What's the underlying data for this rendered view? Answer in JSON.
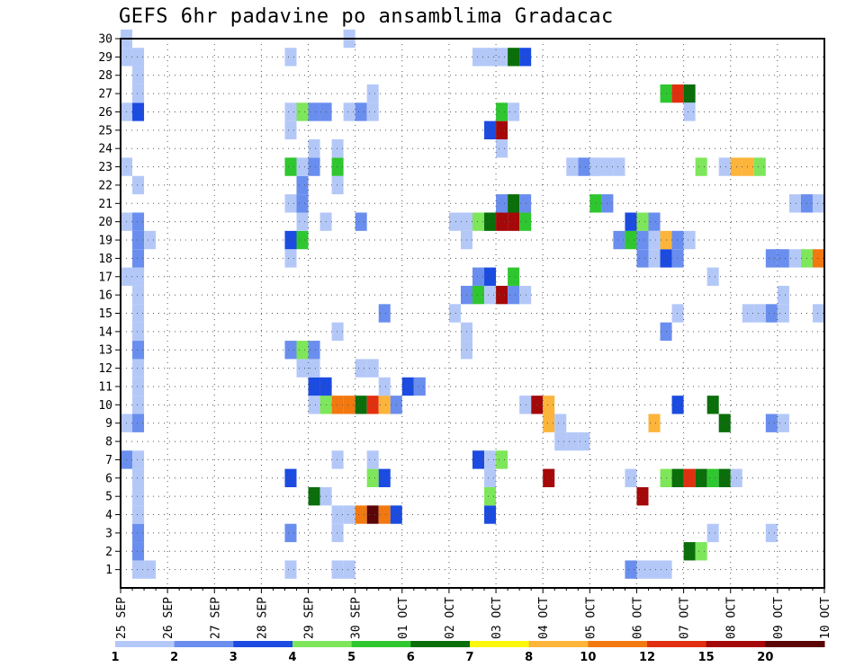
{
  "title": "GEFS 6hr padavine po ansamblima Gradacac",
  "chart_data": {
    "type": "heatmap",
    "title": "GEFS 6hr padavine po ansamblima Gradacac",
    "x_label": "",
    "y_label": "",
    "x_ticks": [
      "25 SEP",
      "26 SEP",
      "27 SEP",
      "28 SEP",
      "29 SEP",
      "30 SEP",
      "01 OCT",
      "02 OCT",
      "03 OCT",
      "04 OCT",
      "05 OCT",
      "06 OCT",
      "07 OCT",
      "08 OCT",
      "09 OCT",
      "10 OCT"
    ],
    "x_range_days": [
      0,
      15
    ],
    "y_ticks": [
      1,
      2,
      3,
      4,
      5,
      6,
      7,
      8,
      9,
      10,
      11,
      12,
      13,
      14,
      15,
      16,
      17,
      18,
      19,
      20,
      21,
      22,
      23,
      24,
      25,
      26,
      27,
      28,
      29,
      30
    ],
    "y_range": [
      0,
      30
    ],
    "grid": true,
    "colorbar": {
      "labels": [
        "1",
        "2",
        "3",
        "4",
        "5",
        "6",
        "7",
        "8",
        "10",
        "12",
        "15",
        "20"
      ],
      "colors": [
        "#b4c8f8",
        "#6a8eee",
        "#1b4be0",
        "#7ee65a",
        "#2fc72f",
        "#0a6e0a",
        "#fcf60a",
        "#fcb43a",
        "#f27810",
        "#e03010",
        "#a40808",
        "#5a0606"
      ]
    },
    "cells": [
      [
        1,
        1,
        1
      ],
      [
        2,
        1,
        1
      ],
      [
        1,
        2,
        2
      ],
      [
        1,
        3,
        2
      ],
      [
        1,
        4,
        1
      ],
      [
        1,
        5,
        1
      ],
      [
        1,
        6,
        1
      ],
      [
        0,
        7,
        2
      ],
      [
        1,
        7,
        1
      ],
      [
        0,
        9,
        1
      ],
      [
        1,
        9,
        2
      ],
      [
        1,
        10,
        1
      ],
      [
        1,
        11,
        1
      ],
      [
        1,
        12,
        1
      ],
      [
        1,
        13,
        2
      ],
      [
        1,
        14,
        1
      ],
      [
        1,
        15,
        1
      ],
      [
        1,
        16,
        1
      ],
      [
        0,
        17,
        1
      ],
      [
        1,
        17,
        1
      ],
      [
        1,
        18,
        2
      ],
      [
        1,
        19,
        2
      ],
      [
        2,
        19,
        1
      ],
      [
        0,
        20,
        1
      ],
      [
        1,
        20,
        2
      ],
      [
        1,
        22,
        1
      ],
      [
        0,
        23,
        1
      ],
      [
        0,
        26,
        1
      ],
      [
        1,
        26,
        3
      ],
      [
        1,
        27,
        1
      ],
      [
        1,
        28,
        1
      ],
      [
        0,
        29,
        1
      ],
      [
        1,
        29,
        1
      ],
      [
        0,
        30,
        1
      ],
      [
        14,
        1,
        1
      ],
      [
        18,
        1,
        1
      ],
      [
        19,
        1,
        1
      ],
      [
        14,
        3,
        2
      ],
      [
        18,
        3,
        1
      ],
      [
        18,
        4,
        1
      ],
      [
        19,
        4,
        1
      ],
      [
        20,
        4,
        9
      ],
      [
        21,
        4,
        12
      ],
      [
        22,
        4,
        9
      ],
      [
        23,
        4,
        3
      ],
      [
        16,
        5,
        6
      ],
      [
        17,
        5,
        1
      ],
      [
        14,
        6,
        3
      ],
      [
        21,
        6,
        4
      ],
      [
        22,
        6,
        3
      ],
      [
        18,
        7,
        1
      ],
      [
        21,
        7,
        1
      ],
      [
        16,
        10,
        1
      ],
      [
        17,
        10,
        4
      ],
      [
        18,
        10,
        9
      ],
      [
        19,
        10,
        9
      ],
      [
        20,
        10,
        6
      ],
      [
        21,
        10,
        10
      ],
      [
        22,
        10,
        8
      ],
      [
        23,
        10,
        2
      ],
      [
        16,
        11,
        3
      ],
      [
        17,
        11,
        3
      ],
      [
        22,
        11,
        1
      ],
      [
        24,
        11,
        3
      ],
      [
        25,
        11,
        2
      ],
      [
        15,
        12,
        1
      ],
      [
        16,
        12,
        1
      ],
      [
        20,
        12,
        1
      ],
      [
        21,
        12,
        1
      ],
      [
        14,
        13,
        2
      ],
      [
        15,
        13,
        4
      ],
      [
        16,
        13,
        2
      ],
      [
        18,
        14,
        1
      ],
      [
        22,
        15,
        2
      ],
      [
        14,
        18,
        1
      ],
      [
        14,
        19,
        3
      ],
      [
        15,
        19,
        5
      ],
      [
        15,
        20,
        1
      ],
      [
        17,
        20,
        1
      ],
      [
        20,
        20,
        2
      ],
      [
        14,
        21,
        1
      ],
      [
        15,
        21,
        2
      ],
      [
        15,
        22,
        2
      ],
      [
        18,
        22,
        1
      ],
      [
        14,
        23,
        5
      ],
      [
        15,
        23,
        1
      ],
      [
        16,
        23,
        2
      ],
      [
        18,
        23,
        5
      ],
      [
        16,
        24,
        1
      ],
      [
        18,
        24,
        1
      ],
      [
        14,
        25,
        1
      ],
      [
        14,
        26,
        1
      ],
      [
        15,
        26,
        4
      ],
      [
        16,
        26,
        2
      ],
      [
        17,
        26,
        2
      ],
      [
        19,
        26,
        1
      ],
      [
        20,
        26,
        2
      ],
      [
        21,
        26,
        1
      ],
      [
        21,
        27,
        1
      ],
      [
        14,
        29,
        1
      ],
      [
        19,
        30,
        1
      ],
      [
        31,
        4,
        3
      ],
      [
        31,
        5,
        4
      ],
      [
        31,
        6,
        1
      ],
      [
        30,
        7,
        3
      ],
      [
        31,
        7,
        1
      ],
      [
        32,
        7,
        4
      ],
      [
        35,
        10,
        11
      ],
      [
        36,
        10,
        8
      ],
      [
        34,
        10,
        1
      ],
      [
        36,
        9,
        8
      ],
      [
        37,
        9,
        1
      ],
      [
        37,
        8,
        1
      ],
      [
        38,
        8,
        1
      ],
      [
        39,
        8,
        1
      ],
      [
        29,
        13,
        1
      ],
      [
        29,
        14,
        1
      ],
      [
        28,
        15,
        1
      ],
      [
        29,
        16,
        2
      ],
      [
        30,
        16,
        5
      ],
      [
        31,
        16,
        1
      ],
      [
        32,
        16,
        11
      ],
      [
        33,
        16,
        2
      ],
      [
        34,
        16,
        1
      ],
      [
        30,
        17,
        2
      ],
      [
        31,
        17,
        3
      ],
      [
        33,
        17,
        5
      ],
      [
        29,
        19,
        1
      ],
      [
        28,
        20,
        1
      ],
      [
        29,
        20,
        1
      ],
      [
        30,
        20,
        4
      ],
      [
        31,
        20,
        6
      ],
      [
        32,
        20,
        11
      ],
      [
        33,
        20,
        11
      ],
      [
        34,
        20,
        5
      ],
      [
        32,
        21,
        2
      ],
      [
        33,
        21,
        6
      ],
      [
        34,
        21,
        2
      ],
      [
        32,
        24,
        1
      ],
      [
        32,
        25,
        11
      ],
      [
        31,
        25,
        3
      ],
      [
        32,
        26,
        5
      ],
      [
        33,
        26,
        1
      ],
      [
        30,
        29,
        1
      ],
      [
        31,
        29,
        1
      ],
      [
        32,
        29,
        1
      ],
      [
        33,
        29,
        6
      ],
      [
        34,
        29,
        3
      ],
      [
        36,
        6,
        11
      ],
      [
        43,
        6,
        1
      ],
      [
        46,
        6,
        4
      ],
      [
        47,
        6,
        6
      ],
      [
        48,
        6,
        10
      ],
      [
        49,
        6,
        6
      ],
      [
        50,
        6,
        5
      ],
      [
        51,
        6,
        6
      ],
      [
        52,
        6,
        1
      ],
      [
        44,
        5,
        11
      ],
      [
        44,
        1,
        1
      ],
      [
        45,
        1,
        1
      ],
      [
        46,
        1,
        1
      ],
      [
        43,
        1,
        2
      ],
      [
        48,
        2,
        6
      ],
      [
        49,
        2,
        4
      ],
      [
        47,
        10,
        3
      ],
      [
        50,
        10,
        6
      ],
      [
        50,
        3,
        1
      ],
      [
        55,
        3,
        1
      ],
      [
        45,
        9,
        8
      ],
      [
        46,
        14,
        2
      ],
      [
        47,
        15,
        1
      ],
      [
        42,
        19,
        2
      ],
      [
        43,
        19,
        5
      ],
      [
        43,
        20,
        3
      ],
      [
        44,
        20,
        4
      ],
      [
        45,
        20,
        2
      ],
      [
        44,
        18,
        2
      ],
      [
        45,
        18,
        1
      ],
      [
        46,
        18,
        3
      ],
      [
        47,
        18,
        2
      ],
      [
        47,
        19,
        1
      ],
      [
        44,
        19,
        2
      ],
      [
        45,
        19,
        1
      ],
      [
        46,
        19,
        8
      ],
      [
        47,
        19,
        2
      ],
      [
        48,
        19,
        1
      ],
      [
        40,
        21,
        5
      ],
      [
        41,
        21,
        2
      ],
      [
        40,
        23,
        1
      ],
      [
        39,
        23,
        2
      ],
      [
        40,
        23,
        1
      ],
      [
        41,
        23,
        1
      ],
      [
        42,
        23,
        1
      ],
      [
        38,
        23,
        1
      ],
      [
        49,
        23,
        4
      ],
      [
        51,
        23,
        1
      ],
      [
        52,
        23,
        8
      ],
      [
        53,
        23,
        8
      ],
      [
        54,
        23,
        4
      ],
      [
        46,
        27,
        5
      ],
      [
        47,
        27,
        10
      ],
      [
        48,
        27,
        6
      ],
      [
        48,
        26,
        1
      ],
      [
        50,
        17,
        1
      ],
      [
        53,
        15,
        1
      ],
      [
        54,
        15,
        1
      ],
      [
        55,
        15,
        2
      ],
      [
        56,
        15,
        1
      ],
      [
        56,
        16,
        1
      ],
      [
        56,
        18,
        2
      ],
      [
        55,
        18,
        2
      ],
      [
        57,
        18,
        1
      ],
      [
        58,
        18,
        4
      ],
      [
        59,
        18,
        9
      ],
      [
        57,
        21,
        1
      ],
      [
        58,
        21,
        2
      ],
      [
        59,
        21,
        1
      ],
      [
        59,
        15,
        1
      ],
      [
        51,
        9,
        6
      ],
      [
        55,
        9,
        2
      ],
      [
        56,
        9,
        1
      ]
    ]
  }
}
